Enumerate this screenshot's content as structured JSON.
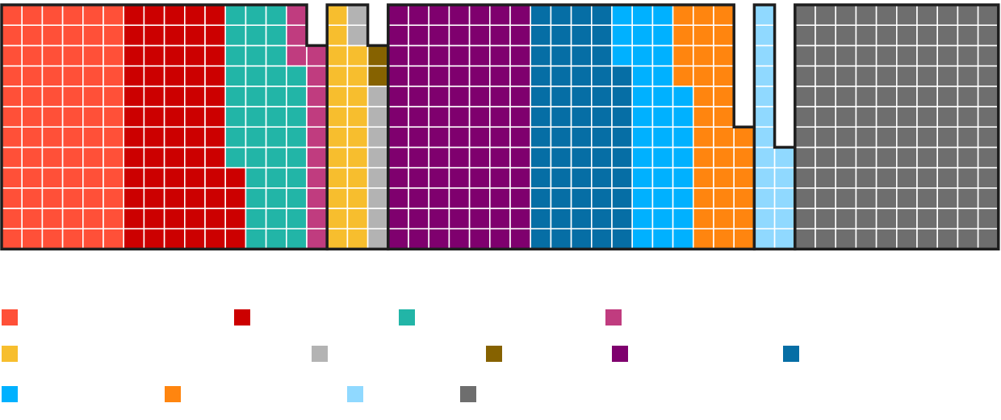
{
  "chart_data": {
    "type": "waffle",
    "title": "",
    "grid_rows": 12,
    "cell_value": 1,
    "blocks": [
      {
        "name": "block-1",
        "parties": [
          {
            "key": "p1",
            "color": "#FF5038",
            "cells": 72
          },
          {
            "key": "p2",
            "color": "#CC0000",
            "cells": 64
          },
          {
            "key": "p3",
            "color": "#22B5A7",
            "cells": 41
          },
          {
            "key": "p4",
            "color": "#C03C7F",
            "cells": 13
          }
        ]
      },
      {
        "name": "block-2",
        "parties": [
          {
            "key": "p5",
            "color": "#F7BE2E",
            "cells": 22
          },
          {
            "key": "p6",
            "color": "#B3B3B3",
            "cells": 10
          },
          {
            "key": "p7",
            "color": "#866200",
            "cells": 2
          }
        ]
      },
      {
        "name": "block-3",
        "parties": [
          {
            "key": "p8",
            "color": "#7F006E",
            "cells": 84
          },
          {
            "key": "p9",
            "color": "#066EA5",
            "cells": 57
          },
          {
            "key": "p10",
            "color": "#00B1FF",
            "cells": 35
          },
          {
            "key": "p11",
            "color": "#FF850F",
            "cells": 34
          }
        ]
      },
      {
        "name": "block-4",
        "parties": [
          {
            "key": "p12",
            "color": "#90D9FF",
            "cells": 17
          }
        ]
      },
      {
        "name": "block-5",
        "parties": [
          {
            "key": "p13",
            "color": "#6E6E6E",
            "cells": 120
          }
        ]
      }
    ],
    "legend": [
      {
        "key": "p1",
        "label": "",
        "color": "#FF5038"
      },
      {
        "key": "p2",
        "label": "",
        "color": "#CC0000"
      },
      {
        "key": "p3",
        "label": "",
        "color": "#22B5A7"
      },
      {
        "key": "p4",
        "label": "",
        "color": "#C03C7F"
      },
      {
        "key": "p5",
        "label": "",
        "color": "#F7BE2E"
      },
      {
        "key": "p6",
        "label": "",
        "color": "#B3B3B3"
      },
      {
        "key": "p7",
        "label": "",
        "color": "#866200"
      },
      {
        "key": "p8",
        "label": "",
        "color": "#7F006E"
      },
      {
        "key": "p9",
        "label": "",
        "color": "#066EA5"
      },
      {
        "key": "p10",
        "label": "",
        "color": "#00B1FF"
      },
      {
        "key": "p11",
        "label": "",
        "color": "#FF850F"
      },
      {
        "key": "p12",
        "label": "",
        "color": "#90D9FF"
      },
      {
        "key": "p13",
        "label": "",
        "color": "#6E6E6E"
      }
    ],
    "legend_placement": "bottom"
  }
}
